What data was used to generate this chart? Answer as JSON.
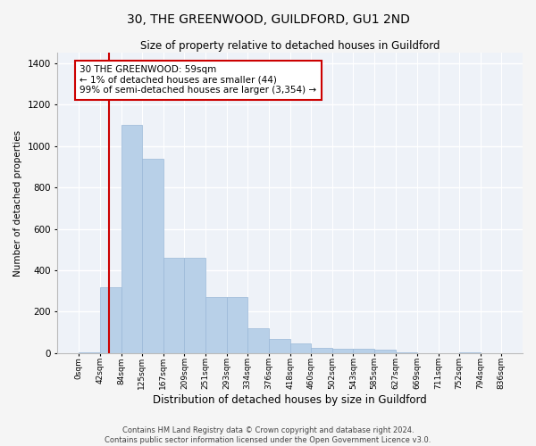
{
  "title": "30, THE GREENWOOD, GUILDFORD, GU1 2ND",
  "subtitle": "Size of property relative to detached houses in Guildford",
  "xlabel": "Distribution of detached houses by size in Guildford",
  "ylabel": "Number of detached properties",
  "footer_line1": "Contains HM Land Registry data © Crown copyright and database right 2024.",
  "footer_line2": "Contains public sector information licensed under the Open Government Licence v3.0.",
  "bar_color": "#b8d0e8",
  "bar_edge_color": "#9ab8d8",
  "background_color": "#eef2f8",
  "grid_color": "#ffffff",
  "annotation_text": "30 THE GREENWOOD: 59sqm\n← 1% of detached houses are smaller (44)\n99% of semi-detached houses are larger (3,354) →",
  "annotation_box_color": "#cc0000",
  "vline_x": 59,
  "vline_color": "#cc0000",
  "bin_edges": [
    0,
    42,
    84,
    125,
    167,
    209,
    251,
    293,
    334,
    376,
    418,
    460,
    502,
    543,
    585,
    627,
    669,
    711,
    752,
    794,
    836
  ],
  "bar_heights": [
    5,
    320,
    1100,
    940,
    460,
    460,
    270,
    270,
    120,
    70,
    45,
    25,
    20,
    20,
    15,
    5,
    0,
    0,
    5,
    0
  ],
  "ylim": [
    0,
    1450
  ],
  "yticks": [
    0,
    200,
    400,
    600,
    800,
    1000,
    1200,
    1400
  ],
  "tick_labels": [
    "0sqm",
    "42sqm",
    "84sqm",
    "125sqm",
    "167sqm",
    "209sqm",
    "251sqm",
    "293sqm",
    "334sqm",
    "376sqm",
    "418sqm",
    "460sqm",
    "502sqm",
    "543sqm",
    "585sqm",
    "627sqm",
    "669sqm",
    "711sqm",
    "752sqm",
    "794sqm",
    "836sqm"
  ]
}
